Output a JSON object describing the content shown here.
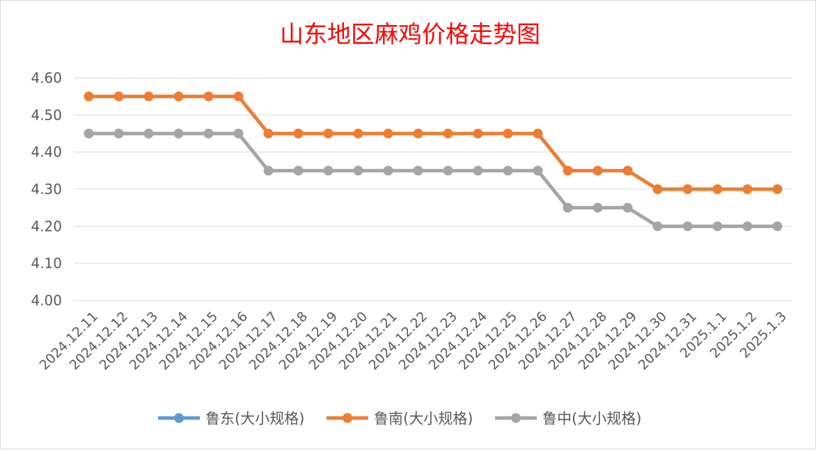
{
  "chart_data": {
    "type": "line",
    "title": "山东地区麻鸡价格走势图",
    "xlabel": "",
    "ylabel": "",
    "ylim": [
      4.0,
      4.6
    ],
    "yticks": [
      "4.00",
      "4.10",
      "4.20",
      "4.30",
      "4.40",
      "4.50",
      "4.60"
    ],
    "grid": true,
    "legend_position": "bottom",
    "categories": [
      "2024.12.11",
      "2024.12.12",
      "2024.12.13",
      "2024.12.14",
      "2024.12.15",
      "2024.12.16",
      "2024.12.17",
      "2024.12.18",
      "2024.12.19",
      "2024.12.20",
      "2024.12.21",
      "2024.12.22",
      "2024.12.23",
      "2024.12.24",
      "2024.12.25",
      "2024.12.26",
      "2024.12.27",
      "2024.12.28",
      "2024.12.29",
      "2024.12.30",
      "2024.12.31",
      "2025.1.1",
      "2025.1.2",
      "2025.1.3"
    ],
    "series": [
      {
        "name": "鲁东(大小规格)",
        "color": "#5b9bd5",
        "values": [
          null,
          null,
          null,
          null,
          null,
          null,
          null,
          null,
          null,
          null,
          null,
          null,
          null,
          null,
          null,
          null,
          null,
          null,
          null,
          null,
          null,
          null,
          null,
          null
        ]
      },
      {
        "name": "鲁南(大小规格)",
        "color": "#ed7d31",
        "values": [
          4.55,
          4.55,
          4.55,
          4.55,
          4.55,
          4.55,
          4.45,
          4.45,
          4.45,
          4.45,
          4.45,
          4.45,
          4.45,
          4.45,
          4.45,
          4.45,
          4.35,
          4.35,
          4.35,
          4.3,
          4.3,
          4.3,
          4.3,
          4.3
        ]
      },
      {
        "name": "鲁中(大小规格)",
        "color": "#a5a5a5",
        "values": [
          4.45,
          4.45,
          4.45,
          4.45,
          4.45,
          4.45,
          4.35,
          4.35,
          4.35,
          4.35,
          4.35,
          4.35,
          4.35,
          4.35,
          4.35,
          4.35,
          4.25,
          4.25,
          4.25,
          4.2,
          4.2,
          4.2,
          4.2,
          4.2
        ]
      }
    ]
  }
}
